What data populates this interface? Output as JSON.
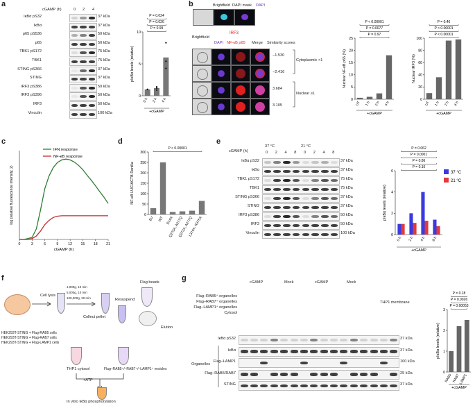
{
  "panels": {
    "a": "a",
    "b": "b",
    "c": "c",
    "d": "d",
    "e": "e",
    "f": "f",
    "g": "g"
  },
  "a": {
    "cgamp_label": "cGAMP (h)",
    "times": [
      "0",
      "2",
      "4"
    ],
    "rows": [
      {
        "name": "IκBα pS32",
        "kda": "37 kDa"
      },
      {
        "name": "IκBα",
        "kda": "37 kDa"
      },
      {
        "name": "p65 pS536",
        "kda": "50 kDa"
      },
      {
        "name": "p65",
        "kda": "50 kDa"
      },
      {
        "name": "TBK1 pS172",
        "kda": "75 kDa"
      },
      {
        "name": "TBK1",
        "kda": "75 kDa"
      },
      {
        "name": "STING pS366",
        "kda": "37 kDa"
      },
      {
        "name": "STING",
        "kda": "37 kDa"
      },
      {
        "name": "IRF3 pS386",
        "kda": "50 kDa"
      },
      {
        "name": "IRF3 pS396",
        "kda": "50 kDa"
      },
      {
        "name": "IRF3",
        "kda": "50 kDa"
      },
      {
        "name": "Vinculin",
        "kda": "100 kDa"
      }
    ],
    "chart_data": {
      "type": "bar",
      "categories": [
        "0 h",
        "2 h",
        "4 h"
      ],
      "values": [
        1.0,
        1.2,
        6.0
      ],
      "points": [
        [
          1.0,
          1.0,
          1.0
        ],
        [
          0.9,
          1.2,
          1.4
        ],
        [
          4.3,
          5.4,
          8.3
        ]
      ],
      "ylabel": "pIκBα levels (relative)",
      "xlabel": "+cGAMP",
      "ylim": [
        0,
        10
      ],
      "yticks": [
        "0",
        "5",
        "10"
      ],
      "pvalues": [
        "P = 0.99",
        "P = 0.026",
        "P = 0.024"
      ]
    }
  },
  "b": {
    "top_labels": {
      "brightfield": "Brightfield",
      "dapi_mask": "DAPI mask",
      "dapi": "DAPI"
    },
    "irf3": "IRF3",
    "cols": [
      "Brightfield",
      "DAPI",
      "NF-κB p65",
      "Merge"
    ],
    "similarity": "Similarity scores",
    "scores": [
      "−1.530",
      "−2.416",
      "3.684",
      "3.105"
    ],
    "cyto": "Cytoplasmic <1",
    "nuclear": "Nuclear ≥1",
    "chart1": {
      "type": "bar",
      "categories": [
        "UT",
        "1 h",
        "2 h",
        "4 h"
      ],
      "values": [
        0.6,
        1.0,
        2.4,
        18.0
      ],
      "ylabel": "Nuclear NF-κB p65 (%)",
      "xlabel": "+cGAMP",
      "ylim": [
        0,
        25
      ],
      "yticks": [
        "0",
        "5",
        "10",
        "15",
        "20",
        "25"
      ],
      "pvalues": [
        "P = 0.97",
        "P = 0.0077",
        "P < 0.00001"
      ]
    },
    "chart2": {
      "type": "bar",
      "categories": [
        "UT",
        "1 h",
        "2 h",
        "4 h"
      ],
      "values": [
        10,
        36,
        96,
        98
      ],
      "ylabel": "Nuclear IRF3 (%)",
      "xlabel": "+cGAMP",
      "ylim": [
        0,
        100
      ],
      "yticks": [
        "0",
        "20",
        "40",
        "60",
        "80",
        "100"
      ],
      "pvalues": [
        "P < 0.00001",
        "P < 0.00001",
        "P = 0.46"
      ]
    }
  },
  "c": {
    "chart_data": {
      "type": "line",
      "x": [
        0,
        1,
        2,
        3,
        4,
        5,
        6,
        7,
        8,
        9,
        10,
        11,
        12,
        13,
        14,
        15,
        16,
        17,
        18,
        19,
        20,
        21
      ],
      "series": [
        {
          "name": "IFN response",
          "color": "#2e7d32",
          "values": [
            0,
            0,
            0.02,
            0.05,
            0.25,
            0.7,
            1.2,
            1.5,
            1.7,
            1.82,
            1.88,
            1.9,
            1.88,
            1.83,
            1.75,
            1.65,
            1.52,
            1.4,
            1.27,
            1.13,
            1.0,
            0.85
          ]
        },
        {
          "name": "NF-κB response",
          "color": "#c62828",
          "values": [
            0,
            0,
            0,
            0.02,
            0.08,
            0.2,
            0.35,
            0.45,
            0.52,
            0.55,
            0.56,
            0.56,
            0.56,
            0.56,
            0.56,
            0.56,
            0.56,
            0.56,
            0.56,
            0.56,
            0.56,
            0.56
          ]
        }
      ],
      "xlabel": "cGAMP (h)",
      "ylabel": "log (relative fluorescence intensity, 2)",
      "xticks": [
        "0",
        "3",
        "6",
        "9",
        "12",
        "15",
        "18",
        "21"
      ]
    }
  },
  "d": {
    "chart_data": {
      "type": "bar",
      "categories": [
        "EV",
        "WT",
        "R14A",
        "Q273A, A277Q",
        "Q273A, A277Q",
        "L374A, R375A"
      ],
      "values": [
        30,
        250,
        12,
        15,
        18,
        65
      ],
      "ylabel": "NF-κB LUC/ACTB Renilla",
      "ylim": [
        0,
        300
      ],
      "yticks": [
        "0",
        "50",
        "100",
        "150",
        "200",
        "250",
        "300"
      ],
      "pvalues": [
        "P < 0.00001"
      ]
    }
  },
  "e": {
    "cgamp_label": "cGAMP (h)",
    "temps": [
      "37 °C",
      "21 °C"
    ],
    "times": [
      "0",
      "2",
      "4",
      "8",
      "0",
      "2",
      "4",
      "8"
    ],
    "rows": [
      {
        "name": "IκBα pS32",
        "kda": "37 kDa"
      },
      {
        "name": "IκBα",
        "kda": "37 kDa"
      },
      {
        "name": "TBK1 pS172",
        "kda": "75 kDa"
      },
      {
        "name": "TBK1",
        "kda": "75 kDa"
      },
      {
        "name": "STING pS366",
        "kda": "37 kDa"
      },
      {
        "name": "STING",
        "kda": "37 kDa"
      },
      {
        "name": "IRF3 pS386",
        "kda": "50 kDa"
      },
      {
        "name": "IRF3",
        "kda": "50 kDa"
      },
      {
        "name": "Vinculin",
        "kda": "100 kDa"
      }
    ],
    "chart_data": {
      "type": "bar",
      "categories": [
        "0 h",
        "2 h",
        "4 h",
        "8 h"
      ],
      "series": [
        {
          "name": "37 °C",
          "color": "#3a3ae0",
          "values": [
            1.0,
            2.0,
            4.0,
            1.4
          ]
        },
        {
          "name": "21 °C",
          "color": "#e03a3a",
          "values": [
            1.0,
            1.1,
            1.3,
            0.8
          ]
        }
      ],
      "ylabel": "pIκBα levels (relative)",
      "xlabel": "+cGAMP",
      "ylim": [
        0,
        6
      ],
      "yticks": [
        "0",
        "2",
        "4",
        "6"
      ],
      "pvalues": [
        "P = 0.10",
        "P = 0.86",
        "P = 0.0001",
        "P = 0.062"
      ]
    }
  },
  "f": {
    "cell_lysis": "Cell lysis",
    "spin": [
      "1,000g, 10 min",
      "5,000g, 10 min",
      "100,000g, 30 min"
    ],
    "collect": "Collect pellet",
    "resuspend": "Resuspend",
    "flag_beads": "Flag beads",
    "elution": "Elution",
    "cells": [
      "HEK293T-STING + Flag-RAB5 cells",
      "HEK293T-STING + Flag-RAB7 cells",
      "HEK293T-STING + Flag-LAMP1 cells"
    ],
    "thp1": "THP1 cytosol",
    "vesicles": "Flag–RAB5⁺/–RAB7⁺/–LAMP1⁺ vesicles",
    "atp": "+ATP",
    "invitro": "In vitro IκBα phosphorylation"
  },
  "g": {
    "groups": [
      "cGAMP",
      "Mock",
      "cGAMP",
      "Mock"
    ],
    "thp1": "THP1 membrane",
    "conds": [
      "Flag–RAB5⁺ organelles",
      "Flag–RAB7⁺ organelles",
      "Flag–LAMP1⁺ organelles",
      "Cytosol"
    ],
    "rows": [
      {
        "name": "IκBα pS32",
        "kda": "37 kDa"
      },
      {
        "name": "IκBα",
        "kda": "37 kDa"
      },
      {
        "name": "Flag–LAMP1",
        "kda": "100 kDa"
      },
      {
        "name": "Flag–RAB5/RAB7",
        "kda": "25 kDa"
      },
      {
        "name": "STING",
        "kda": "37 kDa"
      }
    ],
    "organelles": "Organelles",
    "chart_data": {
      "type": "bar",
      "categories": [
        "RAB5",
        "RAB7",
        "LAMP1"
      ],
      "values": [
        1.0,
        2.2,
        2.5
      ],
      "ylabel": "pIκBα levels (relative)",
      "xlabel": "+cGAMP",
      "ylim": [
        0,
        3
      ],
      "yticks": [
        "0",
        "1",
        "2",
        "3"
      ],
      "pvalues": [
        "P = 0.00053",
        "P = 0.0026",
        "P = 0.18"
      ]
    }
  }
}
